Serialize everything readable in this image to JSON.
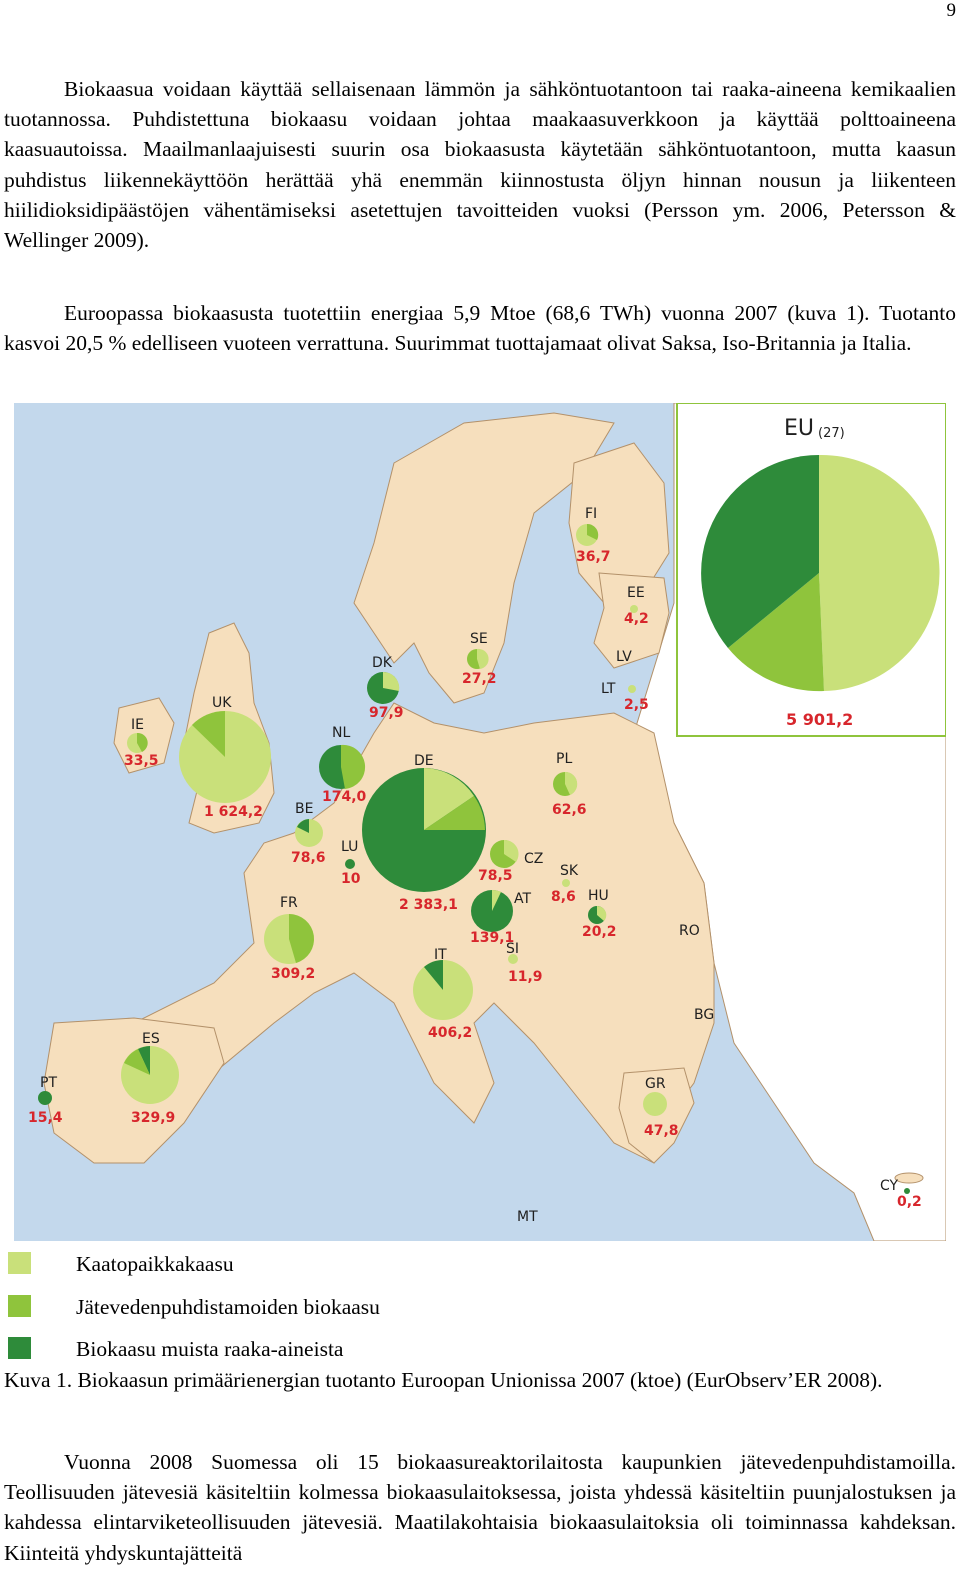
{
  "page": {
    "number": "9",
    "paragraph_1": "Biokaasua voidaan käyttää sellaisenaan lämmön ja sähköntuotantoon tai raaka-aineena kemikaalien tuotannossa. Puhdistettuna biokaasu voidaan johtaa maakaasuverkkoon ja käyttää polttoaineena kaasuautoissa. Maailmanlaajuisesti suurin osa biokaasusta käytetään sähköntuotantoon, mutta kaasun puhdistus liikennekäyttöön herättää yhä enemmän kiinnostusta öljyn hinnan nousun ja liikenteen hiilidioksidipäästöjen vähentämiseksi asetettujen tavoitteiden vuoksi (Persson ym. 2006, Petersson & Wellinger 2009).",
    "paragraph_2": "Euroopassa biokaasusta tuotettiin energiaa 5,9 Mtoe (68,6 TWh) vuonna 2007 (kuva 1). Tuotanto kasvoi 20,5 % edelliseen vuoteen verrattuna. Suurimmat tuottajamaat olivat Saksa, Iso-Britannia ja Italia.",
    "paragraph_3": "Vuonna 2008 Suomessa oli 15 biokaasureaktorilaitosta kaupunkien jätevedenpuhdistamoilla. Teollisuuden jätevesiä käsiteltiin kolmessa biokaasulaitoksessa, joista yhdessä käsiteltiin puunjalostuksen ja kahdessa elintarviketeollisuuden jätevesiä. Maatilakohtaisia biokaasulaitoksia oli toiminnassa kahdeksan. Kiinteitä yhdyskuntajätteitä"
  },
  "figure": {
    "caption": "Kuva 1. Biokaasun primäärienergian tuotanto Euroopan Unionissa 2007 (ktoe) (EurObserv’ER 2008).",
    "legend": [
      {
        "label": "Kaatopaikkakaasu",
        "color": "#c9e07a"
      },
      {
        "label": "Jätevedenpuhdistamoiden biokaasu",
        "color": "#8fc43c"
      },
      {
        "label": "Biokaasu muista raaka-aineista",
        "color": "#2e8b3a"
      }
    ],
    "colors": {
      "sea": "#c3d8ec",
      "land_eu": "#f6dfbd",
      "land_other": "#ffffff",
      "border": "#b3916a"
    },
    "eu_inset": {
      "title": "EU",
      "title_sub": "(27)",
      "value": "5 901,2"
    },
    "countries": [
      {
        "code": "FI",
        "value": "36,7"
      },
      {
        "code": "EE",
        "value": "4,2"
      },
      {
        "code": "LV",
        "value": ""
      },
      {
        "code": "LT",
        "value": "2,5"
      },
      {
        "code": "SE",
        "value": "27,2"
      },
      {
        "code": "DK",
        "value": "97,9"
      },
      {
        "code": "IE",
        "value": "33,5"
      },
      {
        "code": "UK",
        "value": "1 624,2"
      },
      {
        "code": "NL",
        "value": "174,0"
      },
      {
        "code": "BE",
        "value": "78,6"
      },
      {
        "code": "LU",
        "value": "10"
      },
      {
        "code": "DE",
        "value": "2 383,1"
      },
      {
        "code": "PL",
        "value": "62,6"
      },
      {
        "code": "CZ",
        "value": "78,5"
      },
      {
        "code": "SK",
        "value": "8,6"
      },
      {
        "code": "AT",
        "value": "139,1"
      },
      {
        "code": "HU",
        "value": "20,2"
      },
      {
        "code": "SI",
        "value": "11,9"
      },
      {
        "code": "FR",
        "value": "309,2"
      },
      {
        "code": "IT",
        "value": "406,2"
      },
      {
        "code": "RO",
        "value": ""
      },
      {
        "code": "BG",
        "value": ""
      },
      {
        "code": "ES",
        "value": "329,9"
      },
      {
        "code": "PT",
        "value": "15,4"
      },
      {
        "code": "GR",
        "value": "47,8"
      },
      {
        "code": "CY",
        "value": "0,2"
      },
      {
        "code": "MT",
        "value": ""
      }
    ]
  }
}
